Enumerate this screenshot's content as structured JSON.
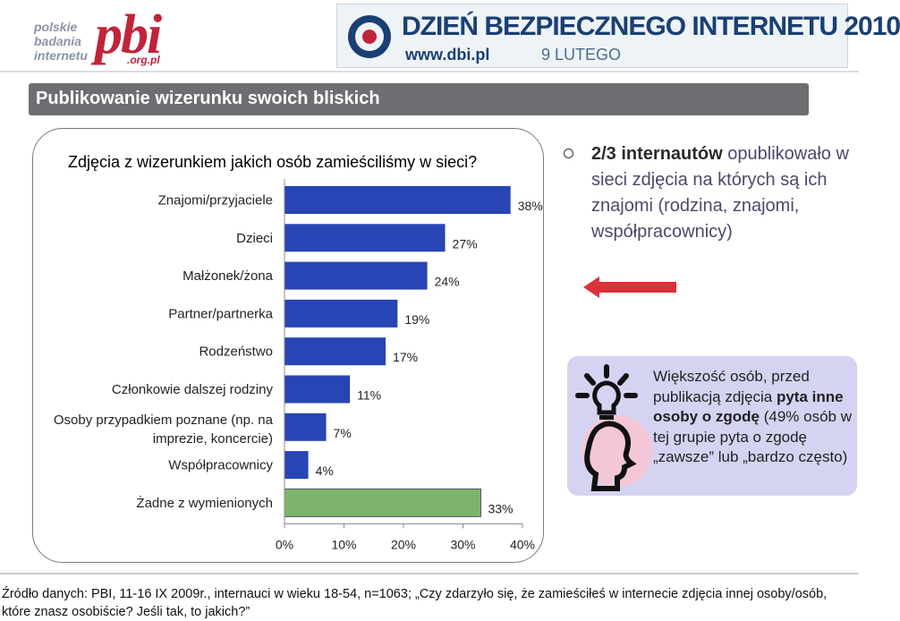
{
  "logo": {
    "lines": [
      "polskie",
      "badania",
      "internetu"
    ],
    "brand": "pbi",
    "domain": ".org.pl"
  },
  "banner": {
    "title": "DZIEŃ BEZPIECZNEGO INTERNETU 2010",
    "url": "www.dbi.pl",
    "date": "9 LUTEGO"
  },
  "header": {
    "title": "Publikowanie wizerunku swoich bliskich"
  },
  "question": "Zdjęcia z wizerunkiem jakich osób zamieściliśmy w sieci?",
  "key_finding": {
    "bold": "2/3 internautów",
    "rest": "opublikowało w sieci zdjęcia na których są ich znajomi (rodzina, znajomi, współpracownicy)"
  },
  "info": {
    "t1": "Większość osób, przed publikacją zdjęcia ",
    "b1": "pyta inne osoby o zgodę",
    "t2": " (49% osób w tej grupie pyta o zgodę „zawsze” lub „bardzo często)"
  },
  "source": "Źródło danych: PBI, 11-16 IX 2009r., internauci w wieku 18-54, n=1063; „Czy zdarzyło się, że zamieściłeś w internecie zdjęcia innej osoby/osób, które znasz osobiście? Jeśli tak, to jakich?”",
  "colors": {
    "bar": "#2745b5",
    "bar_none": "#7db46c",
    "title_bg": "#6d6e71",
    "info_bg": "#d4d3f2"
  },
  "chart_data": {
    "type": "bar",
    "orientation": "horizontal",
    "categories": [
      "Znajomi/przyjaciele",
      "Dzieci",
      "Małżonek/żona",
      "Partner/partnerka",
      "Rodzeństwo",
      "Członkowie dalszej rodziny",
      "Osoby przypadkiem poznane (np. na imprezie, koncercie)",
      "Współpracownicy",
      "Żadne z wymienionych"
    ],
    "values": [
      38,
      27,
      24,
      19,
      17,
      11,
      7,
      4,
      33
    ],
    "value_labels": [
      "38%",
      "27%",
      "24%",
      "19%",
      "17%",
      "11%",
      "7%",
      "4%",
      "33%"
    ],
    "ticks": [
      "0%",
      "10%",
      "20%",
      "30%",
      "40%"
    ],
    "xlim": [
      0,
      40
    ]
  }
}
